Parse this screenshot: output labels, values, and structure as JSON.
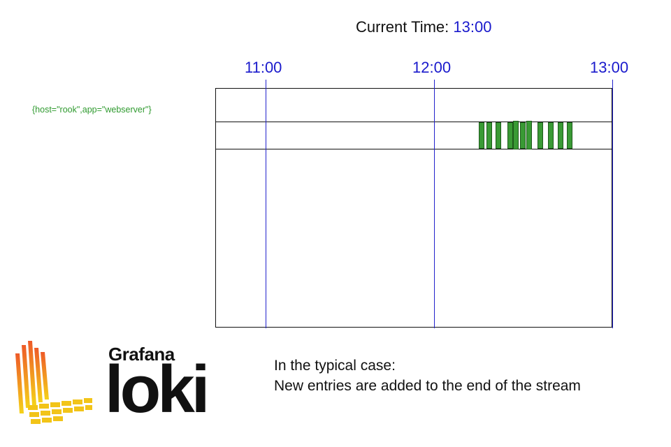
{
  "header": {
    "current_time_label": "Current Time:",
    "current_time_value": "13:00"
  },
  "timeline": {
    "ticks": [
      "11:00",
      "12:00",
      "13:00"
    ],
    "stream_label": "{host=\"rook\",app=\"webserver\"}",
    "entry_count": 11
  },
  "caption": {
    "line1": "In the typical case:",
    "line2": "New entries are added to the end of the stream"
  },
  "logo": {
    "brand": "Grafana",
    "product": "loki"
  },
  "colors": {
    "accent": "#1a1acc",
    "entry": "#3a9a35",
    "label": "#2f9a2f"
  }
}
